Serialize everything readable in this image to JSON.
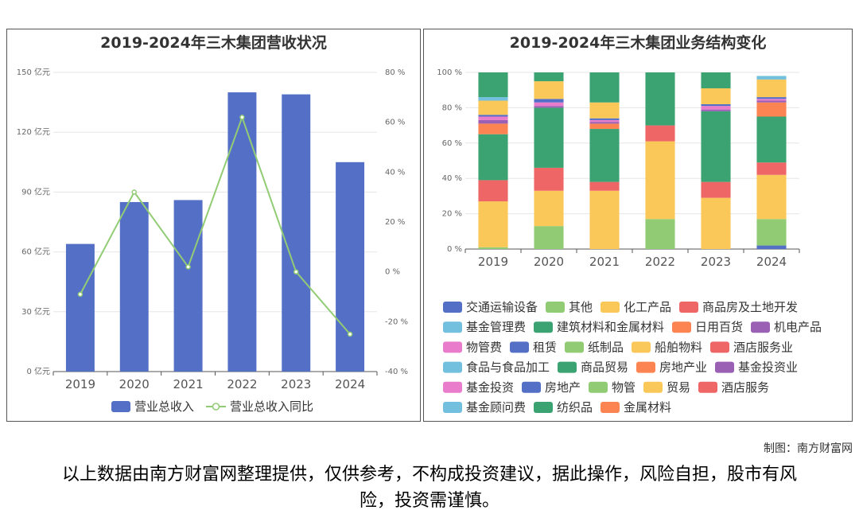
{
  "footer": {
    "credit": "制图：南方财富网",
    "disclaimer": "以上数据由南方财富网整理提供，仅供参考，不构成投资建议，据此操作，风险自担，股市有风险，投资需谨慎。"
  },
  "chart_data": [
    {
      "type": "bar",
      "title": "2019-2024年三木集团营收状况",
      "categories": [
        "2019",
        "2020",
        "2021",
        "2022",
        "2023",
        "2024"
      ],
      "series": [
        {
          "name": "营业总收入",
          "type": "bar",
          "axis": "left",
          "color": "#5470c6",
          "values": [
            64,
            85,
            86,
            140,
            139,
            105
          ]
        },
        {
          "name": "营业总收入同比",
          "type": "line",
          "axis": "right",
          "color": "#91cc75",
          "values": [
            -9,
            32,
            2,
            62,
            0,
            -25
          ]
        }
      ],
      "y_left": {
        "ticks": [
          "0 亿元",
          "30 亿元",
          "60 亿元",
          "90 亿元",
          "120 亿元",
          "150 亿元"
        ],
        "ylim": [
          0,
          150
        ]
      },
      "y_right": {
        "ticks": [
          "-40 %",
          "-20 %",
          "0 %",
          "20 %",
          "40 %",
          "60 %",
          "80 %"
        ],
        "ylim": [
          -40,
          80
        ]
      },
      "legend_position": "bottom"
    },
    {
      "type": "bar",
      "stacked": true,
      "title": "2019-2024年三木集团业务结构变化",
      "categories": [
        "2019",
        "2020",
        "2021",
        "2022",
        "2023",
        "2024"
      ],
      "y_ticks": [
        "0 %",
        "20 %",
        "40 %",
        "60 %",
        "80 %",
        "100 %"
      ],
      "ylim": [
        0,
        100
      ],
      "legend_position": "bottom",
      "series": [
        {
          "name": "交通运输设备",
          "color": "#5470c6",
          "values": [
            0,
            0,
            0,
            0,
            0,
            2
          ]
        },
        {
          "name": "其他",
          "color": "#91cc75",
          "values": [
            1,
            13,
            0,
            17,
            0,
            15
          ]
        },
        {
          "name": "化工产品",
          "color": "#fac858",
          "values": [
            26,
            20,
            33,
            44,
            29,
            25
          ]
        },
        {
          "name": "商品房及土地开发",
          "color": "#ee6666",
          "values": [
            12,
            13,
            5,
            9,
            9,
            7
          ]
        },
        {
          "name": "基金管理费",
          "color": "#73c0de",
          "values": [
            0,
            0,
            0,
            0,
            0,
            0
          ]
        },
        {
          "name": "建筑材料和金属材料",
          "color": "#3ba272",
          "values": [
            26,
            34,
            30,
            30,
            40,
            26
          ]
        },
        {
          "name": "日用百货",
          "color": "#fc8452",
          "values": [
            6,
            0,
            3,
            0,
            0,
            8
          ]
        },
        {
          "name": "机电产品",
          "color": "#9a60b4",
          "values": [
            2,
            1,
            1,
            0,
            1,
            1
          ]
        },
        {
          "name": "物管费",
          "color": "#ea7ccc",
          "values": [
            2,
            2,
            1,
            0,
            2,
            1
          ]
        },
        {
          "name": "租赁",
          "color": "#5470c6",
          "values": [
            1,
            2,
            1,
            0,
            1,
            1
          ]
        },
        {
          "name": "纸制品",
          "color": "#91cc75",
          "values": [
            0,
            0,
            0,
            0,
            0,
            0
          ]
        },
        {
          "name": "船舶物料",
          "color": "#fac858",
          "values": [
            8,
            10,
            9,
            0,
            9,
            10
          ]
        },
        {
          "name": "酒店服务业",
          "color": "#ee6666",
          "values": [
            0,
            0,
            0,
            0,
            0,
            0
          ]
        },
        {
          "name": "食品与食品加工",
          "color": "#73c0de",
          "values": [
            2,
            0,
            0,
            0,
            0,
            2
          ]
        },
        {
          "name": "商品贸易",
          "color": "#3ba272",
          "values": [
            14,
            5,
            17,
            0,
            9,
            0
          ]
        },
        {
          "name": "房地产业",
          "color": "#fc8452",
          "values": [
            0,
            0,
            0,
            0,
            0,
            0
          ]
        },
        {
          "name": "基金投资业",
          "color": "#9a60b4",
          "values": [
            0,
            0,
            0,
            0,
            0,
            0
          ]
        },
        {
          "name": "基金投资",
          "color": "#ea7ccc",
          "values": [
            0,
            0,
            0,
            0,
            0,
            0
          ]
        },
        {
          "name": "房地产",
          "color": "#5470c6",
          "values": [
            0,
            0,
            0,
            0,
            0,
            0
          ]
        },
        {
          "name": "物管",
          "color": "#91cc75",
          "values": [
            0,
            0,
            0,
            0,
            0,
            0
          ]
        },
        {
          "name": "贸易",
          "color": "#fac858",
          "values": [
            0,
            0,
            0,
            0,
            0,
            0
          ]
        },
        {
          "name": "酒店服务",
          "color": "#ee6666",
          "values": [
            0,
            0,
            0,
            0,
            0,
            0
          ]
        },
        {
          "name": "基金顾问费",
          "color": "#73c0de",
          "values": [
            0,
            0,
            0,
            0,
            0,
            0
          ]
        },
        {
          "name": "纺织品",
          "color": "#3ba272",
          "values": [
            0,
            0,
            0,
            0,
            0,
            0
          ]
        },
        {
          "name": "金属材料",
          "color": "#fc8452",
          "values": [
            0,
            0,
            0,
            0,
            0,
            0
          ]
        }
      ]
    }
  ]
}
